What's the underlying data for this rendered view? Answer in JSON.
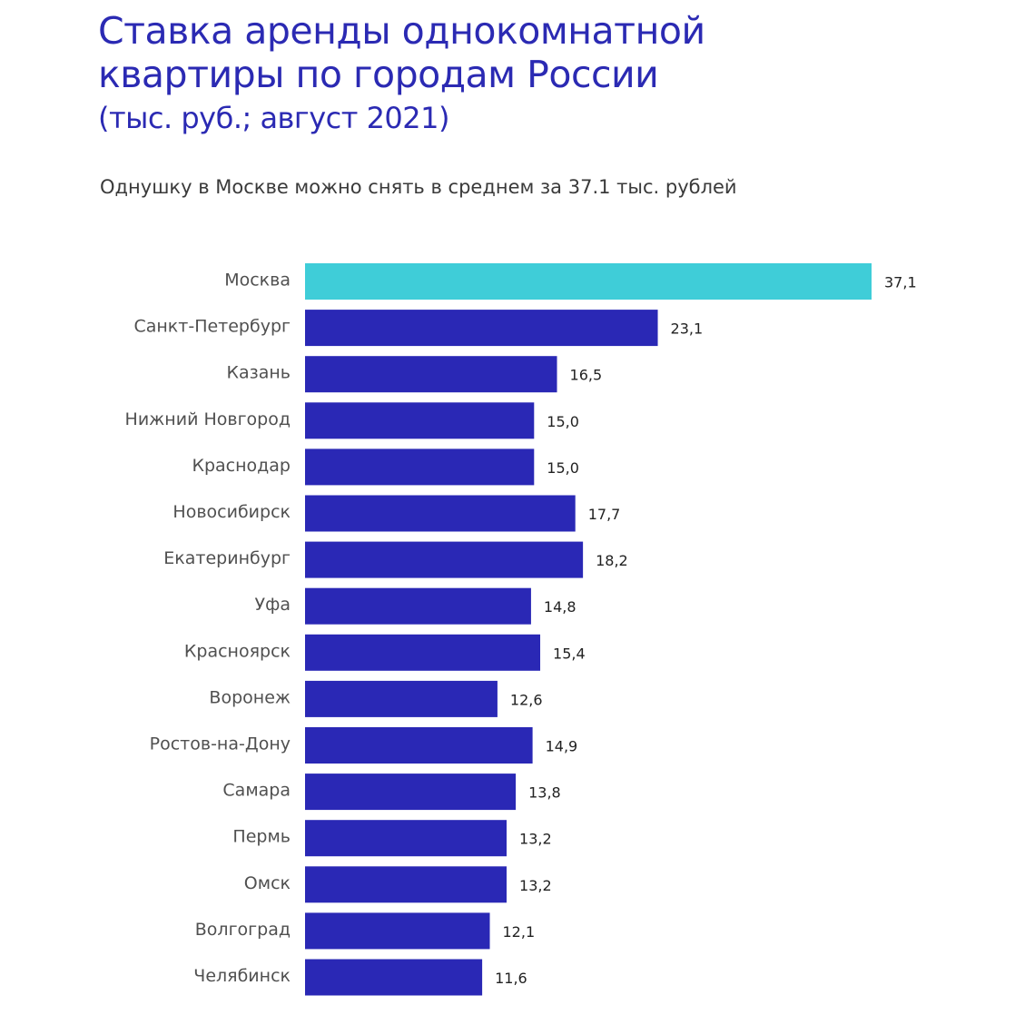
{
  "chart_data": {
    "type": "bar",
    "orientation": "horizontal",
    "title": "Ставка аренды однокомнатной квартиры по городам России",
    "title_lines": [
      "Ставка аренды однокомнатной",
      "квартиры по городам России"
    ],
    "units": "(тыс. руб.; август 2021)",
    "subtitle": "Однушку в Москве можно снять в среднем за 37.1 тыс. рублей",
    "categories": [
      "Москва",
      "Санкт-Петербург",
      "Казань",
      "Нижний Новгород",
      "Краснодар",
      "Новосибирск",
      "Екатеринбург",
      "Уфа",
      "Красноярск",
      "Воронеж",
      "Ростов-на-Дону",
      "Самара",
      "Пермь",
      "Омск",
      "Волгоград",
      "Челябинск"
    ],
    "values": [
      37.1,
      23.1,
      16.5,
      15.0,
      15.0,
      17.7,
      18.2,
      14.8,
      15.4,
      12.6,
      14.9,
      13.8,
      13.2,
      13.2,
      12.1,
      11.6
    ],
    "value_labels": [
      "37,1",
      "23,1",
      "16,5",
      "15,0",
      "15,0",
      "17,7",
      "18,2",
      "14,8",
      "15,4",
      "12,6",
      "14,9",
      "13,8",
      "13,2",
      "13,2",
      "12,1",
      "11,6"
    ],
    "xlim": [
      0,
      37.1
    ],
    "grid": false,
    "highlight_index": 0,
    "colors": {
      "bar": "#2a28b5",
      "highlight": "#3fcdd8",
      "title": "#2b2ab3"
    }
  }
}
